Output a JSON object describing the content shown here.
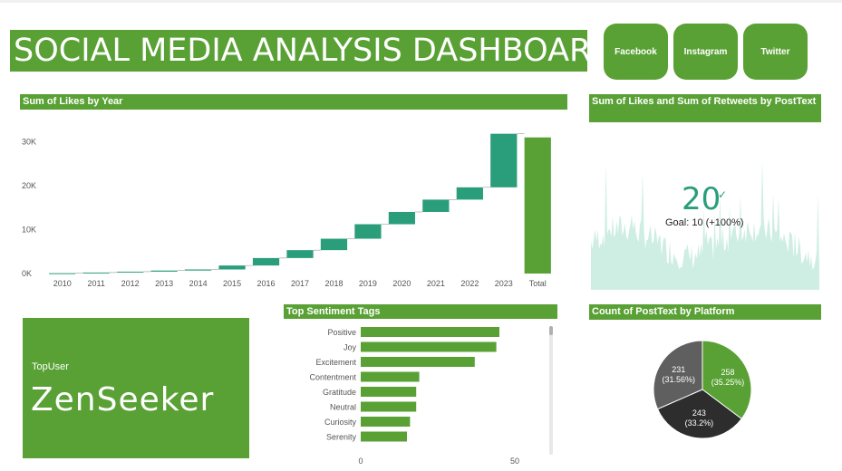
{
  "dashboard": {
    "title": "SOCIAL MEDIA ANALYSIS DASHBOARD",
    "nav_buttons": [
      "Facebook",
      "Instagram",
      "Twitter"
    ],
    "colors": {
      "accent": "#59a135",
      "waterfall": "#2a9d7a",
      "kpi": "#2a9d7a"
    }
  },
  "likes_by_year": {
    "header": "Sum of Likes by Year"
  },
  "retweets_panel": {
    "header": "Sum of Likes and Sum of Retweets by PostText",
    "kpi_value": "20",
    "goal_text": "Goal: 10 (+100%)"
  },
  "top_user": {
    "label": "TopUser",
    "value": "ZenSeeker"
  },
  "sentiment": {
    "header": "Top Sentiment Tags"
  },
  "platform": {
    "header": "Count of PostText by Platform"
  },
  "chart_data": [
    {
      "type": "bar",
      "subtype": "waterfall",
      "title": "Sum of Likes by Year",
      "categories": [
        "2010",
        "2011",
        "2012",
        "2013",
        "2014",
        "2015",
        "2016",
        "2017",
        "2018",
        "2019",
        "2020",
        "2021",
        "2022",
        "2023",
        "Total"
      ],
      "values": [
        80,
        150,
        200,
        250,
        250,
        900,
        1700,
        1800,
        2600,
        3300,
        2800,
        2800,
        2800,
        12200,
        31000
      ],
      "yticks": [
        "0K",
        "10K",
        "20K",
        "30K"
      ],
      "ylim": [
        0,
        33000
      ]
    },
    {
      "type": "bar",
      "orientation": "horizontal",
      "title": "Top Sentiment Tags",
      "categories": [
        "Positive",
        "Joy",
        "Excitement",
        "Contentment",
        "Gratitude",
        "Neutral",
        "Curiosity",
        "Serenity"
      ],
      "values": [
        45,
        44,
        37,
        19,
        18,
        18,
        16,
        15
      ],
      "xticks": [
        "0",
        "50"
      ],
      "xlim": [
        0,
        50
      ]
    },
    {
      "type": "pie",
      "title": "Count of PostText by Platform",
      "slices": [
        {
          "value": 258,
          "label": "258",
          "pct": "(35.25%)",
          "color": "#59a135"
        },
        {
          "value": 243,
          "label": "243",
          "pct": "(33.2%)",
          "color": "#2d2d2d"
        },
        {
          "value": 231,
          "label": "231",
          "pct": "(31.56%)",
          "color": "#5f5f5f"
        }
      ]
    }
  ]
}
